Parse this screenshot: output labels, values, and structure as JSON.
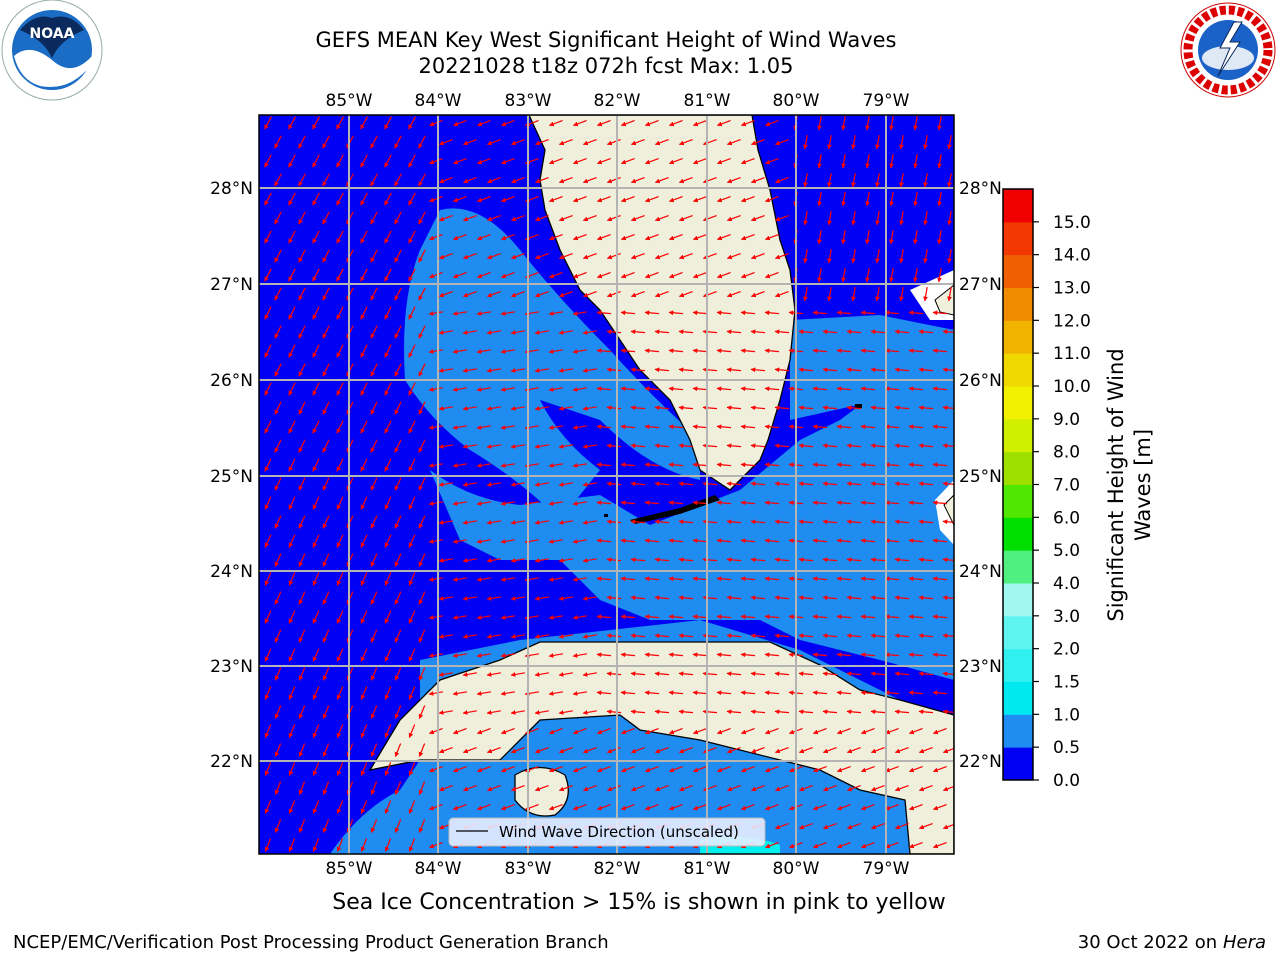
{
  "title_line1": "GEFS MEAN Key West Significant Height of Wind Waves",
  "title_line2": "20221028 t18z 072h fcst   Max: 1.05",
  "logos": {
    "left": "noaa-logo",
    "right": "nws-logo",
    "nws_text": "NATIONAL WEATHER SERVICE",
    "noaa_text": "NOAA"
  },
  "map": {
    "lon_labels": [
      "85°W",
      "84°W",
      "83°W",
      "82°W",
      "81°W",
      "80°W",
      "79°W"
    ],
    "lat_labels": [
      "28°N",
      "27°N",
      "26°N",
      "25°N",
      "24°N",
      "23°N",
      "22°N"
    ],
    "colors": {
      "ocean_low": "#0000f5",
      "ocean_mid": "#1e8cf0",
      "ocean_high": "#00f0f0",
      "land": "#efefdc",
      "grid": "#b4b4b4",
      "arrow": "#ff0000"
    },
    "legend_label": "Wind Wave Direction (unscaled)"
  },
  "colorbar": {
    "label_line1": "Significant Height of Wind",
    "label_line2": "Waves [m]",
    "ticks": [
      "0.0",
      "0.5",
      "1.0",
      "1.5",
      "2.0",
      "3.0",
      "4.0",
      "5.0",
      "6.0",
      "7.0",
      "8.0",
      "9.0",
      "10.0",
      "11.0",
      "12.0",
      "13.0",
      "14.0",
      "15.0"
    ],
    "colors": [
      "#0000f5",
      "#1e8cf0",
      "#00e8f0",
      "#30f0f0",
      "#60f4f0",
      "#a0f8f0",
      "#50f080",
      "#00e000",
      "#50e800",
      "#a0e000",
      "#d0f000",
      "#f0f000",
      "#f0d800",
      "#f0b400",
      "#f08c00",
      "#f06000",
      "#f03800",
      "#f00000"
    ]
  },
  "sea_ice_note": "Sea Ice Concentration > 15% is shown in pink to yellow",
  "credit_left": "NCEP/EMC/Verification Post Processing Product Generation Branch",
  "credit_right_prefix": "30 Oct 2022 on ",
  "credit_right_host": "Hera"
}
